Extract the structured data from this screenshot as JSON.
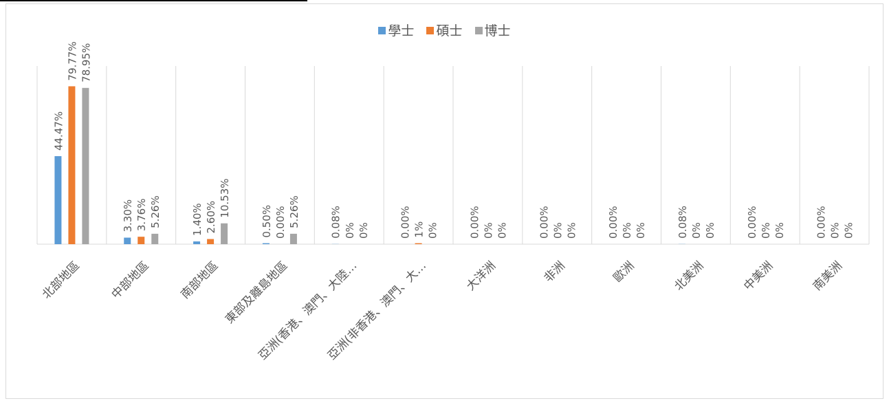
{
  "chart_data": {
    "type": "bar",
    "title": "",
    "xlabel": "",
    "ylabel": "",
    "ylim": [
      0,
      90
    ],
    "grid": "vertical category separators",
    "legend_position": "top",
    "categories": [
      "北部地區",
      "中部地區",
      "南部地區",
      "東部及離島地區",
      "亞洲(香港、澳門、大陸…",
      "亞洲(非香港、澳門、大…",
      "大洋洲",
      "非洲",
      "歐洲",
      "北美洲",
      "中美洲",
      "南美洲"
    ],
    "series": [
      {
        "name": "學士",
        "color": "#5b9bd5",
        "values": [
          44.47,
          3.3,
          1.4,
          0.5,
          0.08,
          0.0,
          0.0,
          0.0,
          0.0,
          0.08,
          0.0,
          0.0
        ],
        "labels": [
          "44.47%",
          "3.30%",
          "1.40%",
          "0.50%",
          "0.08%",
          "0.00%",
          "0.00%",
          "0.00%",
          "0.00%",
          "0.08%",
          "0.00%",
          "0.00%"
        ]
      },
      {
        "name": "碩士",
        "color": "#ed7d31",
        "values": [
          79.77,
          3.76,
          2.6,
          0.0,
          0,
          0.5,
          0,
          0,
          0,
          0,
          0,
          0
        ],
        "labels": [
          "79.77%",
          "3.76%",
          "2.60%",
          "0.00%",
          "0%",
          "1%",
          "0%",
          "0%",
          "0%",
          "0%",
          "0%",
          "0%"
        ]
      },
      {
        "name": "博士",
        "color": "#a5a5a5",
        "values": [
          78.95,
          5.26,
          10.53,
          5.26,
          0,
          0,
          0,
          0,
          0,
          0,
          0,
          0
        ],
        "labels": [
          "78.95%",
          "5.26%",
          "10.53%",
          "5.26%",
          "0%",
          "0%",
          "0%",
          "0%",
          "0%",
          "0%",
          "0%",
          "0%"
        ]
      }
    ]
  }
}
